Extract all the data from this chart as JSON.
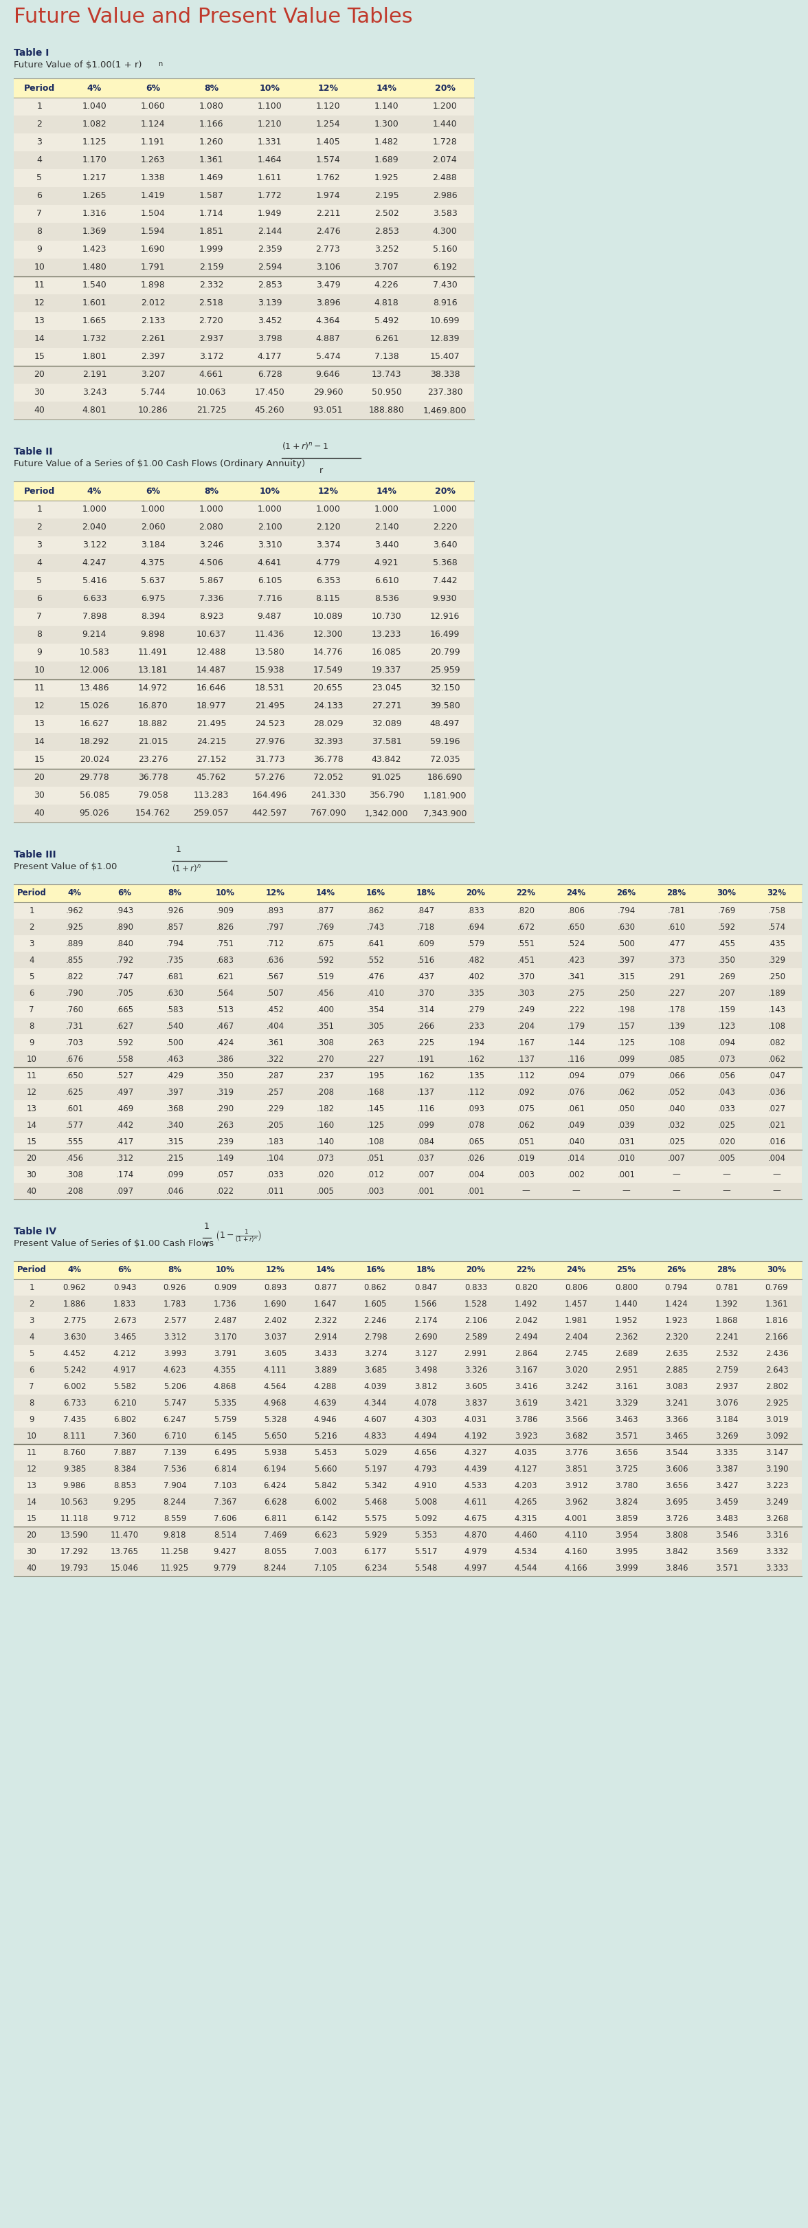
{
  "main_title": "Future Value and Present Value Tables",
  "bg_color": "#d6e9e5",
  "table_bg_light": "#f0ece0",
  "table_bg_alt": "#e6e2d6",
  "header_bg": "#fef7c0",
  "header_text_color": "#1a2a5e",
  "body_text_color": "#2d2d2d",
  "title_color": "#c0392b",
  "divider_color": "#999988",
  "table1": {
    "label": "Table I",
    "subtitle": "Future Value of $1.00(1 + r)",
    "superscript": "n",
    "headers": [
      "Period",
      "4%",
      "6%",
      "8%",
      "10%",
      "12%",
      "14%",
      "20%"
    ],
    "rows": [
      [
        1,
        "1.040",
        "1.060",
        "1.080",
        "1.100",
        "1.120",
        "1.140",
        "1.200"
      ],
      [
        2,
        "1.082",
        "1.124",
        "1.166",
        "1.210",
        "1.254",
        "1.300",
        "1.440"
      ],
      [
        3,
        "1.125",
        "1.191",
        "1.260",
        "1.331",
        "1.405",
        "1.482",
        "1.728"
      ],
      [
        4,
        "1.170",
        "1.263",
        "1.361",
        "1.464",
        "1.574",
        "1.689",
        "2.074"
      ],
      [
        5,
        "1.217",
        "1.338",
        "1.469",
        "1.611",
        "1.762",
        "1.925",
        "2.488"
      ],
      [
        6,
        "1.265",
        "1.419",
        "1.587",
        "1.772",
        "1.974",
        "2.195",
        "2.986"
      ],
      [
        7,
        "1.316",
        "1.504",
        "1.714",
        "1.949",
        "2.211",
        "2.502",
        "3.583"
      ],
      [
        8,
        "1.369",
        "1.594",
        "1.851",
        "2.144",
        "2.476",
        "2.853",
        "4.300"
      ],
      [
        9,
        "1.423",
        "1.690",
        "1.999",
        "2.359",
        "2.773",
        "3.252",
        "5.160"
      ],
      [
        10,
        "1.480",
        "1.791",
        "2.159",
        "2.594",
        "3.106",
        "3.707",
        "6.192"
      ],
      [
        11,
        "1.540",
        "1.898",
        "2.332",
        "2.853",
        "3.479",
        "4.226",
        "7.430"
      ],
      [
        12,
        "1.601",
        "2.012",
        "2.518",
        "3.139",
        "3.896",
        "4.818",
        "8.916"
      ],
      [
        13,
        "1.665",
        "2.133",
        "2.720",
        "3.452",
        "4.364",
        "5.492",
        "10.699"
      ],
      [
        14,
        "1.732",
        "2.261",
        "2.937",
        "3.798",
        "4.887",
        "6.261",
        "12.839"
      ],
      [
        15,
        "1.801",
        "2.397",
        "3.172",
        "4.177",
        "5.474",
        "7.138",
        "15.407"
      ],
      [
        20,
        "2.191",
        "3.207",
        "4.661",
        "6.728",
        "9.646",
        "13.743",
        "38.338"
      ],
      [
        30,
        "3.243",
        "5.744",
        "10.063",
        "17.450",
        "29.960",
        "50.950",
        "237.380"
      ],
      [
        40,
        "4.801",
        "10.286",
        "21.725",
        "45.260",
        "93.051",
        "188.880",
        "1,469.800"
      ]
    ],
    "dividers_after": [
      9,
      14
    ]
  },
  "table2": {
    "label": "Table II",
    "subtitle": "Future Value of a Series of $1.00 Cash Flows (Ordinary Annuity)",
    "headers": [
      "Period",
      "4%",
      "6%",
      "8%",
      "10%",
      "12%",
      "14%",
      "20%"
    ],
    "rows": [
      [
        1,
        "1.000",
        "1.000",
        "1.000",
        "1.000",
        "1.000",
        "1.000",
        "1.000"
      ],
      [
        2,
        "2.040",
        "2.060",
        "2.080",
        "2.100",
        "2.120",
        "2.140",
        "2.220"
      ],
      [
        3,
        "3.122",
        "3.184",
        "3.246",
        "3.310",
        "3.374",
        "3.440",
        "3.640"
      ],
      [
        4,
        "4.247",
        "4.375",
        "4.506",
        "4.641",
        "4.779",
        "4.921",
        "5.368"
      ],
      [
        5,
        "5.416",
        "5.637",
        "5.867",
        "6.105",
        "6.353",
        "6.610",
        "7.442"
      ],
      [
        6,
        "6.633",
        "6.975",
        "7.336",
        "7.716",
        "8.115",
        "8.536",
        "9.930"
      ],
      [
        7,
        "7.898",
        "8.394",
        "8.923",
        "9.487",
        "10.089",
        "10.730",
        "12.916"
      ],
      [
        8,
        "9.214",
        "9.898",
        "10.637",
        "11.436",
        "12.300",
        "13.233",
        "16.499"
      ],
      [
        9,
        "10.583",
        "11.491",
        "12.488",
        "13.580",
        "14.776",
        "16.085",
        "20.799"
      ],
      [
        10,
        "12.006",
        "13.181",
        "14.487",
        "15.938",
        "17.549",
        "19.337",
        "25.959"
      ],
      [
        11,
        "13.486",
        "14.972",
        "16.646",
        "18.531",
        "20.655",
        "23.045",
        "32.150"
      ],
      [
        12,
        "15.026",
        "16.870",
        "18.977",
        "21.495",
        "24.133",
        "27.271",
        "39.580"
      ],
      [
        13,
        "16.627",
        "18.882",
        "21.495",
        "24.523",
        "28.029",
        "32.089",
        "48.497"
      ],
      [
        14,
        "18.292",
        "21.015",
        "24.215",
        "27.976",
        "32.393",
        "37.581",
        "59.196"
      ],
      [
        15,
        "20.024",
        "23.276",
        "27.152",
        "31.773",
        "36.778",
        "43.842",
        "72.035"
      ],
      [
        20,
        "29.778",
        "36.778",
        "45.762",
        "57.276",
        "72.052",
        "91.025",
        "186.690"
      ],
      [
        30,
        "56.085",
        "79.058",
        "113.283",
        "164.496",
        "241.330",
        "356.790",
        "1,181.900"
      ],
      [
        40,
        "95.026",
        "154.762",
        "259.057",
        "442.597",
        "767.090",
        "1,342.000",
        "7,343.900"
      ]
    ],
    "dividers_after": [
      9,
      14
    ]
  },
  "table3": {
    "label": "Table III",
    "subtitle": "Present Value of $1.00",
    "headers": [
      "Period",
      "4%",
      "6%",
      "8%",
      "10%",
      "12%",
      "14%",
      "16%",
      "18%",
      "20%",
      "22%",
      "24%",
      "26%",
      "28%",
      "30%",
      "32%"
    ],
    "rows": [
      [
        1,
        ".962",
        ".943",
        ".926",
        ".909",
        ".893",
        ".877",
        ".862",
        ".847",
        ".833",
        ".820",
        ".806",
        ".794",
        ".781",
        ".769",
        ".758"
      ],
      [
        2,
        ".925",
        ".890",
        ".857",
        ".826",
        ".797",
        ".769",
        ".743",
        ".718",
        ".694",
        ".672",
        ".650",
        ".630",
        ".610",
        ".592",
        ".574"
      ],
      [
        3,
        ".889",
        ".840",
        ".794",
        ".751",
        ".712",
        ".675",
        ".641",
        ".609",
        ".579",
        ".551",
        ".524",
        ".500",
        ".477",
        ".455",
        ".435"
      ],
      [
        4,
        ".855",
        ".792",
        ".735",
        ".683",
        ".636",
        ".592",
        ".552",
        ".516",
        ".482",
        ".451",
        ".423",
        ".397",
        ".373",
        ".350",
        ".329"
      ],
      [
        5,
        ".822",
        ".747",
        ".681",
        ".621",
        ".567",
        ".519",
        ".476",
        ".437",
        ".402",
        ".370",
        ".341",
        ".315",
        ".291",
        ".269",
        ".250"
      ],
      [
        6,
        ".790",
        ".705",
        ".630",
        ".564",
        ".507",
        ".456",
        ".410",
        ".370",
        ".335",
        ".303",
        ".275",
        ".250",
        ".227",
        ".207",
        ".189"
      ],
      [
        7,
        ".760",
        ".665",
        ".583",
        ".513",
        ".452",
        ".400",
        ".354",
        ".314",
        ".279",
        ".249",
        ".222",
        ".198",
        ".178",
        ".159",
        ".143"
      ],
      [
        8,
        ".731",
        ".627",
        ".540",
        ".467",
        ".404",
        ".351",
        ".305",
        ".266",
        ".233",
        ".204",
        ".179",
        ".157",
        ".139",
        ".123",
        ".108"
      ],
      [
        9,
        ".703",
        ".592",
        ".500",
        ".424",
        ".361",
        ".308",
        ".263",
        ".225",
        ".194",
        ".167",
        ".144",
        ".125",
        ".108",
        ".094",
        ".082"
      ],
      [
        10,
        ".676",
        ".558",
        ".463",
        ".386",
        ".322",
        ".270",
        ".227",
        ".191",
        ".162",
        ".137",
        ".116",
        ".099",
        ".085",
        ".073",
        ".062"
      ],
      [
        11,
        ".650",
        ".527",
        ".429",
        ".350",
        ".287",
        ".237",
        ".195",
        ".162",
        ".135",
        ".112",
        ".094",
        ".079",
        ".066",
        ".056",
        ".047"
      ],
      [
        12,
        ".625",
        ".497",
        ".397",
        ".319",
        ".257",
        ".208",
        ".168",
        ".137",
        ".112",
        ".092",
        ".076",
        ".062",
        ".052",
        ".043",
        ".036"
      ],
      [
        13,
        ".601",
        ".469",
        ".368",
        ".290",
        ".229",
        ".182",
        ".145",
        ".116",
        ".093",
        ".075",
        ".061",
        ".050",
        ".040",
        ".033",
        ".027"
      ],
      [
        14,
        ".577",
        ".442",
        ".340",
        ".263",
        ".205",
        ".160",
        ".125",
        ".099",
        ".078",
        ".062",
        ".049",
        ".039",
        ".032",
        ".025",
        ".021"
      ],
      [
        15,
        ".555",
        ".417",
        ".315",
        ".239",
        ".183",
        ".140",
        ".108",
        ".084",
        ".065",
        ".051",
        ".040",
        ".031",
        ".025",
        ".020",
        ".016"
      ],
      [
        20,
        ".456",
        ".312",
        ".215",
        ".149",
        ".104",
        ".073",
        ".051",
        ".037",
        ".026",
        ".019",
        ".014",
        ".010",
        ".007",
        ".005",
        ".004"
      ],
      [
        30,
        ".308",
        ".174",
        ".099",
        ".057",
        ".033",
        ".020",
        ".012",
        ".007",
        ".004",
        ".003",
        ".002",
        ".001",
        "",
        "",
        ""
      ],
      [
        40,
        ".208",
        ".097",
        ".046",
        ".022",
        ".011",
        ".005",
        ".003",
        ".001",
        ".001",
        "",
        "",
        "",
        "",
        "",
        ""
      ]
    ],
    "dividers_after": [
      9,
      14
    ]
  },
  "table4": {
    "label": "Table IV",
    "subtitle": "Present Value of Series of $1.00 Cash Flows",
    "headers": [
      "Period",
      "4%",
      "6%",
      "8%",
      "10%",
      "12%",
      "14%",
      "16%",
      "18%",
      "20%",
      "22%",
      "24%",
      "25%",
      "26%",
      "28%",
      "30%"
    ],
    "rows": [
      [
        1,
        "0.962",
        "0.943",
        "0.926",
        "0.909",
        "0.893",
        "0.877",
        "0.862",
        "0.847",
        "0.833",
        "0.820",
        "0.806",
        "0.800",
        "0.794",
        "0.781",
        "0.769"
      ],
      [
        2,
        "1.886",
        "1.833",
        "1.783",
        "1.736",
        "1.690",
        "1.647",
        "1.605",
        "1.566",
        "1.528",
        "1.492",
        "1.457",
        "1.440",
        "1.424",
        "1.392",
        "1.361"
      ],
      [
        3,
        "2.775",
        "2.673",
        "2.577",
        "2.487",
        "2.402",
        "2.322",
        "2.246",
        "2.174",
        "2.106",
        "2.042",
        "1.981",
        "1.952",
        "1.923",
        "1.868",
        "1.816"
      ],
      [
        4,
        "3.630",
        "3.465",
        "3.312",
        "3.170",
        "3.037",
        "2.914",
        "2.798",
        "2.690",
        "2.589",
        "2.494",
        "2.404",
        "2.362",
        "2.320",
        "2.241",
        "2.166"
      ],
      [
        5,
        "4.452",
        "4.212",
        "3.993",
        "3.791",
        "3.605",
        "3.433",
        "3.274",
        "3.127",
        "2.991",
        "2.864",
        "2.745",
        "2.689",
        "2.635",
        "2.532",
        "2.436"
      ],
      [
        6,
        "5.242",
        "4.917",
        "4.623",
        "4.355",
        "4.111",
        "3.889",
        "3.685",
        "3.498",
        "3.326",
        "3.167",
        "3.020",
        "2.951",
        "2.885",
        "2.759",
        "2.643"
      ],
      [
        7,
        "6.002",
        "5.582",
        "5.206",
        "4.868",
        "4.564",
        "4.288",
        "4.039",
        "3.812",
        "3.605",
        "3.416",
        "3.242",
        "3.161",
        "3.083",
        "2.937",
        "2.802"
      ],
      [
        8,
        "6.733",
        "6.210",
        "5.747",
        "5.335",
        "4.968",
        "4.639",
        "4.344",
        "4.078",
        "3.837",
        "3.619",
        "3.421",
        "3.329",
        "3.241",
        "3.076",
        "2.925"
      ],
      [
        9,
        "7.435",
        "6.802",
        "6.247",
        "5.759",
        "5.328",
        "4.946",
        "4.607",
        "4.303",
        "4.031",
        "3.786",
        "3.566",
        "3.463",
        "3.366",
        "3.184",
        "3.019"
      ],
      [
        10,
        "8.111",
        "7.360",
        "6.710",
        "6.145",
        "5.650",
        "5.216",
        "4.833",
        "4.494",
        "4.192",
        "3.923",
        "3.682",
        "3.571",
        "3.465",
        "3.269",
        "3.092"
      ],
      [
        11,
        "8.760",
        "7.887",
        "7.139",
        "6.495",
        "5.938",
        "5.453",
        "5.029",
        "4.656",
        "4.327",
        "4.035",
        "3.776",
        "3.656",
        "3.544",
        "3.335",
        "3.147"
      ],
      [
        12,
        "9.385",
        "8.384",
        "7.536",
        "6.814",
        "6.194",
        "5.660",
        "5.197",
        "4.793",
        "4.439",
        "4.127",
        "3.851",
        "3.725",
        "3.606",
        "3.387",
        "3.190"
      ],
      [
        13,
        "9.986",
        "8.853",
        "7.904",
        "7.103",
        "6.424",
        "5.842",
        "5.342",
        "4.910",
        "4.533",
        "4.203",
        "3.912",
        "3.780",
        "3.656",
        "3.427",
        "3.223"
      ],
      [
        14,
        "10.563",
        "9.295",
        "8.244",
        "7.367",
        "6.628",
        "6.002",
        "5.468",
        "5.008",
        "4.611",
        "4.265",
        "3.962",
        "3.824",
        "3.695",
        "3.459",
        "3.249"
      ],
      [
        15,
        "11.118",
        "9.712",
        "8.559",
        "7.606",
        "6.811",
        "6.142",
        "5.575",
        "5.092",
        "4.675",
        "4.315",
        "4.001",
        "3.859",
        "3.726",
        "3.483",
        "3.268"
      ],
      [
        20,
        "13.590",
        "11.470",
        "9.818",
        "8.514",
        "7.469",
        "6.623",
        "5.929",
        "5.353",
        "4.870",
        "4.460",
        "4.110",
        "3.954",
        "3.808",
        "3.546",
        "3.316"
      ],
      [
        30,
        "17.292",
        "13.765",
        "11.258",
        "9.427",
        "8.055",
        "7.003",
        "6.177",
        "5.517",
        "4.979",
        "4.534",
        "4.160",
        "3.995",
        "3.842",
        "3.569",
        "3.332"
      ],
      [
        40,
        "19.793",
        "15.046",
        "11.925",
        "9.779",
        "8.244",
        "7.105",
        "6.234",
        "5.548",
        "4.997",
        "4.544",
        "4.166",
        "3.999",
        "3.846",
        "3.571",
        "3.333"
      ]
    ],
    "dividers_after": [
      9,
      14
    ]
  }
}
